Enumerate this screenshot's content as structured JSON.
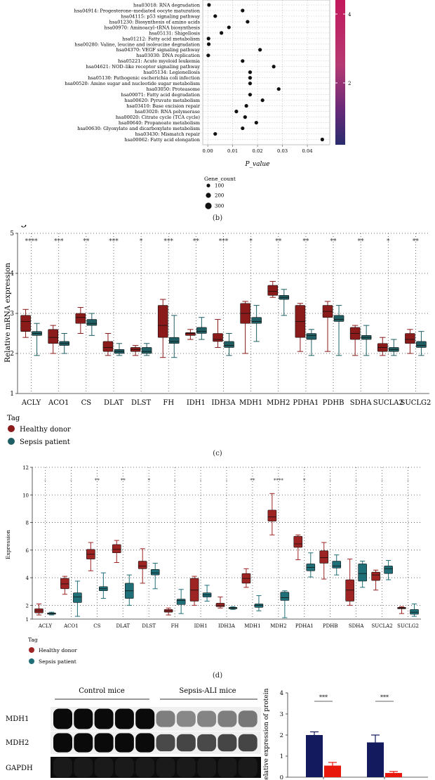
{
  "chart_data": [
    {
      "type": "scatter",
      "panel": "(b)",
      "categories": [
        "hsa03018: RNA degradation",
        "hsa04914: Progesterone–mediated oocyte maturation",
        "hsa04115: p53 signaling pathway",
        "hsa01230: Biosynthesis of amino acids",
        "hsa00970: Aminoacyl–tRNA biosynthesis",
        "hsa05131: Shigellosis",
        "hsa01212: Fatty acid metabolism",
        "hsa00280: Valine, leucine and isoleucine degradation",
        "hsa04370: VEGF signaling pathway",
        "hsa03030: DNA replication",
        "hsa05221: Acute myeloid leukemia",
        "hsa04621: NOD–like receptor signaling pathway",
        "hsa05134: Legionellosis",
        "hsa05130: Pathogenic escherichia coli infection",
        "hsa00520: Amino sugar and nucleotide sugar metabolism",
        "hsa03050: Proteasome",
        "hsa00071: Fatty acid degradation",
        "hsa00620: Pyruvate metabolism",
        "hsa03410: Base excision repair",
        "hsa03020: RNA polymerase",
        "hsa00020: Citrate cycle (TCA cycle)",
        "hsa00640: Propanoate metabolism",
        "hsa00630: Glyoxylate and dicarboxylate metabolism",
        "hsa03430: Mismatch repair",
        "hsa00062: Fatty acid elongation"
      ],
      "x": [
        0.0005,
        0.014,
        0.003,
        0.016,
        0.0085,
        0.0055,
        0.0003,
        0.0004,
        0.021,
        0.0002,
        0.014,
        0.0265,
        0.017,
        0.017,
        0.017,
        0.0285,
        0.017,
        0.022,
        0.0155,
        0.0115,
        0.015,
        0.0195,
        0.014,
        0.003,
        0.046
      ],
      "xticks": [
        "0.00",
        "0.01",
        "0.02",
        "0.03",
        "0.04"
      ],
      "xlim": [
        -0.002,
        0.049
      ],
      "xlabel": "P_value",
      "colorbar_ticks": [
        "4",
        "2"
      ],
      "size_legend_title": "Gene_count",
      "size_legend": [
        "100",
        "200",
        "300"
      ],
      "colors": {
        "dot": "#111111",
        "cbar_top": "#c2185b",
        "cbar_bottom": "#2a2c6e"
      }
    },
    {
      "type": "box",
      "panel": "(c)",
      "categories": [
        "ACLY",
        "ACO1",
        "CS",
        "DLAT",
        "DLST",
        "FH",
        "IDH1",
        "IDH3A",
        "MDH1",
        "MDH2",
        "PDHA1",
        "PDHB",
        "SDHA",
        "SUCLA2",
        "SUCLG2"
      ],
      "significance": [
        "****",
        "***",
        "**",
        "***",
        "*",
        "***",
        "**",
        "***",
        "*",
        "**",
        "**",
        "**",
        "**",
        "*",
        "**"
      ],
      "series": [
        {
          "name": "Healthy donor",
          "color": "#8b1a1a",
          "stats": [
            [
              2.4,
              2.55,
              2.8,
              2.95,
              3.1
            ],
            [
              2.0,
              2.25,
              2.4,
              2.6,
              2.7
            ],
            [
              2.5,
              2.75,
              2.9,
              3.0,
              3.15
            ],
            [
              1.95,
              2.05,
              2.15,
              2.3,
              2.5
            ],
            [
              1.95,
              2.05,
              2.1,
              2.15,
              2.2
            ],
            [
              1.9,
              2.4,
              2.7,
              3.2,
              3.35
            ],
            [
              2.35,
              2.45,
              2.5,
              2.52,
              2.6
            ],
            [
              2.15,
              2.3,
              2.35,
              2.5,
              2.85
            ],
            [
              2.0,
              2.75,
              3.0,
              3.25,
              3.3
            ],
            [
              3.4,
              3.45,
              3.55,
              3.7,
              3.8
            ],
            [
              2.05,
              2.4,
              2.8,
              3.2,
              3.25
            ],
            [
              2.05,
              2.9,
              3.05,
              3.2,
              3.3
            ],
            [
              1.95,
              2.35,
              2.5,
              2.65,
              2.7
            ],
            [
              1.95,
              2.05,
              2.15,
              2.25,
              2.4
            ],
            [
              2.0,
              2.25,
              2.35,
              2.5,
              2.6
            ]
          ]
        },
        {
          "name": "Sepsis patient",
          "color": "#1f5f63",
          "stats": [
            [
              1.95,
              2.45,
              2.5,
              2.55,
              2.75
            ],
            [
              2.0,
              2.2,
              2.25,
              2.3,
              2.5
            ],
            [
              2.45,
              2.7,
              2.75,
              2.85,
              3.0
            ],
            [
              1.95,
              2.0,
              2.05,
              2.1,
              2.25
            ],
            [
              1.95,
              2.0,
              2.05,
              2.15,
              2.25
            ],
            [
              1.9,
              2.25,
              2.3,
              2.4,
              2.95
            ],
            [
              2.35,
              2.5,
              2.55,
              2.65,
              2.9
            ],
            [
              1.95,
              2.15,
              2.2,
              2.3,
              2.5
            ],
            [
              2.3,
              2.75,
              2.8,
              2.9,
              3.2
            ],
            [
              2.95,
              3.35,
              3.4,
              3.45,
              3.6
            ],
            [
              1.95,
              2.35,
              2.45,
              2.5,
              2.6
            ],
            [
              1.95,
              2.8,
              2.85,
              2.95,
              3.2
            ],
            [
              1.95,
              2.35,
              2.4,
              2.45,
              2.7
            ],
            [
              1.95,
              2.05,
              2.1,
              2.15,
              2.35
            ],
            [
              1.95,
              2.15,
              2.2,
              2.3,
              2.55
            ]
          ]
        }
      ],
      "ylim": [
        1,
        5
      ],
      "yticks": [
        "1",
        "2",
        "3",
        "4",
        "5"
      ],
      "ylabel": "Relative mRNA expression",
      "legend_title": "Tag",
      "legend": [
        "Healthy donor",
        "Sepsis patient"
      ]
    },
    {
      "type": "box",
      "panel": "(d)",
      "categories": [
        "ACLY",
        "ACO1",
        "CS",
        "DLAT",
        "DLST",
        "FH",
        "IDH1",
        "IDH3A",
        "MDH1",
        "MDH2",
        "PDHA1",
        "PDHB",
        "SDHA",
        "SUCLA2",
        "SUCLG2"
      ],
      "significance": [
        "-",
        "-",
        "**",
        "**",
        "*",
        "-",
        "-",
        "-",
        "**",
        "****",
        "*",
        "-",
        "-",
        "-",
        "-"
      ],
      "series": [
        {
          "name": "Healthy donor",
          "color": "#9e2323",
          "stats": [
            [
              1.3,
              1.45,
              1.6,
              1.75,
              2.1
            ],
            [
              2.8,
              3.2,
              3.55,
              3.95,
              4.1
            ],
            [
              4.5,
              5.35,
              5.7,
              6.05,
              6.55
            ],
            [
              5.1,
              5.8,
              6.05,
              6.4,
              6.7
            ],
            [
              3.6,
              4.65,
              4.85,
              5.2,
              6.1
            ],
            [
              1.3,
              1.5,
              1.6,
              1.7,
              1.8
            ],
            [
              2.0,
              2.3,
              3.1,
              3.95,
              4.1
            ],
            [
              1.8,
              1.9,
              2.0,
              2.15,
              2.6
            ],
            [
              3.3,
              3.6,
              3.95,
              4.3,
              4.65
            ],
            [
              7.1,
              8.1,
              8.4,
              8.9,
              10.1
            ],
            [
              5.3,
              6.2,
              6.45,
              7.0,
              7.1
            ],
            [
              3.9,
              5.05,
              5.45,
              5.95,
              6.55
            ],
            [
              2.0,
              2.3,
              3.1,
              3.85,
              5.35
            ],
            [
              3.1,
              3.8,
              4.2,
              4.4,
              4.55
            ],
            [
              1.4,
              1.75,
              1.8,
              1.85,
              1.9
            ]
          ]
        },
        {
          "name": "Sepsis patient",
          "color": "#1f6f78",
          "stats": [
            [
              1.3,
              1.35,
              1.4,
              1.45,
              1.5
            ],
            [
              1.2,
              2.2,
              2.6,
              2.9,
              3.75
            ],
            [
              2.5,
              3.05,
              3.2,
              3.35,
              4.35
            ],
            [
              2.0,
              2.5,
              3.05,
              3.6,
              4.2
            ],
            [
              3.2,
              4.2,
              4.35,
              4.6,
              5.05
            ],
            [
              1.4,
              2.05,
              2.35,
              2.45,
              3.15
            ],
            [
              2.3,
              2.6,
              2.75,
              2.9,
              3.45
            ],
            [
              1.7,
              1.75,
              1.8,
              1.85,
              1.9
            ],
            [
              1.6,
              1.85,
              2.0,
              2.1,
              2.7
            ],
            [
              1.1,
              2.35,
              2.55,
              2.95,
              3.05
            ],
            [
              4.05,
              4.5,
              4.75,
              5.0,
              5.8
            ],
            [
              4.2,
              4.7,
              4.85,
              5.2,
              5.65
            ],
            [
              3.3,
              3.75,
              4.3,
              5.0,
              5.2
            ],
            [
              3.85,
              4.3,
              4.65,
              4.85,
              5.25
            ],
            [
              1.2,
              1.35,
              1.5,
              1.7,
              2.1
            ]
          ]
        }
      ],
      "ylim": [
        1,
        12
      ],
      "yticks": [
        "1",
        "2",
        "4",
        "6",
        "8",
        "10",
        "12"
      ],
      "ylabel": "Expression",
      "legend_title": "Tag",
      "legend": [
        "Healthy donor",
        "Sepsis patient"
      ]
    },
    {
      "type": "bar",
      "panel": "(e)",
      "series": [
        {
          "name": "Control mice",
          "color": "#141a5e",
          "values": [
            2.0,
            1.65
          ],
          "errors": [
            0.15,
            0.35
          ],
          "significance": "***"
        },
        {
          "name": "Sepsis-ALI mice",
          "color": "#e8180c",
          "values": [
            0.55,
            0.2
          ],
          "errors": [
            0.15,
            0.07
          ]
        }
      ],
      "ylim": [
        0,
        4
      ],
      "yticks": [
        "0",
        "1",
        "2",
        "3",
        "4"
      ],
      "ylabel": "Relative expression of protein",
      "significance": [
        "***",
        "***"
      ]
    }
  ],
  "captions": {
    "b": "(b)",
    "c": "(c)",
    "d": "(d)"
  },
  "western_blot": {
    "group_labels": [
      "Control mice",
      "Sepsis-ALI mice"
    ],
    "row_labels": [
      "MDH1",
      "MDH2",
      "GAPDH"
    ],
    "lane_intensity": {
      "MDH1": [
        1.0,
        1.0,
        1.0,
        1.0,
        1.0,
        0.45,
        0.4,
        0.42,
        0.45,
        0.48
      ],
      "MDH2": [
        1.0,
        1.0,
        1.0,
        1.0,
        1.0,
        0.7,
        0.72,
        0.7,
        0.72,
        0.72
      ],
      "GAPDH": [
        0.3,
        0.3,
        0.3,
        0.3,
        0.3,
        0.3,
        0.3,
        0.3,
        0.3,
        0.3
      ]
    }
  }
}
